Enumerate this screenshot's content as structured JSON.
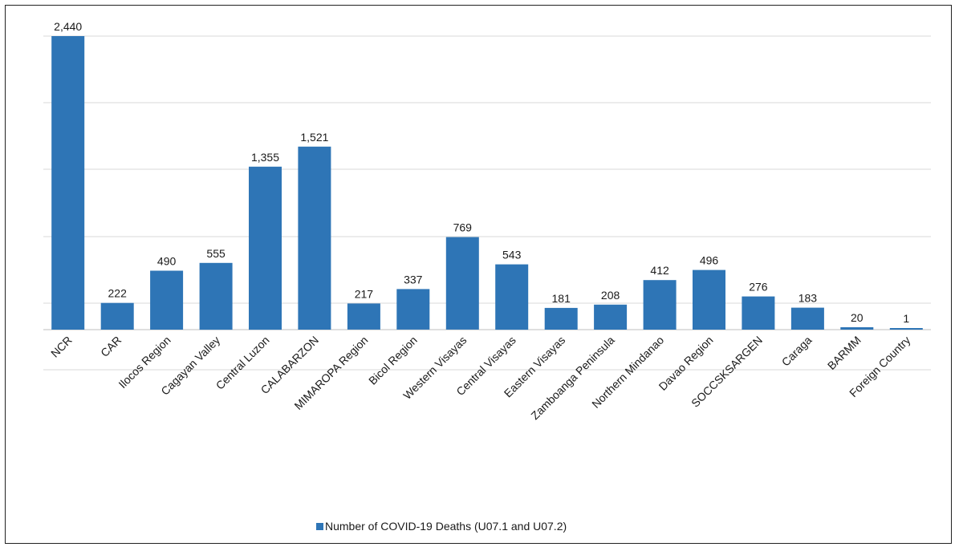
{
  "chart_data": {
    "type": "bar",
    "categories": [
      "NCR",
      "CAR",
      "Ilocos Region",
      "Cagayan Valley",
      "Central Luzon",
      "CALABARZON",
      "MIMAROPA Region",
      "Bicol Region",
      "Western Visayas",
      "Central Visayas",
      "Eastern Visayas",
      "Zamboanga Peninsula",
      "Northern Mindanao",
      "Davao Region",
      "SOCCSKSARGEN",
      "Caraga",
      "BARMM",
      "Foreign Country"
    ],
    "series": [
      {
        "name": "Number of COVID-19 Deaths (U07.1 and U07.2)",
        "values": [
          2440,
          222,
          490,
          555,
          1355,
          1521,
          217,
          337,
          769,
          543,
          181,
          208,
          412,
          496,
          276,
          183,
          20,
          1
        ],
        "labels": [
          "2,440",
          "222",
          "490",
          "555",
          "1,355",
          "1,521",
          "217",
          "337",
          "769",
          "543",
          "181",
          "208",
          "412",
          "496",
          "276",
          "183",
          "20",
          "1"
        ]
      }
    ],
    "colors": {
      "bar": "#2e75b6",
      "grid": "#d9d9d9",
      "axis": "#bfbfbf"
    },
    "grid": true,
    "legend_position": "bottom"
  }
}
